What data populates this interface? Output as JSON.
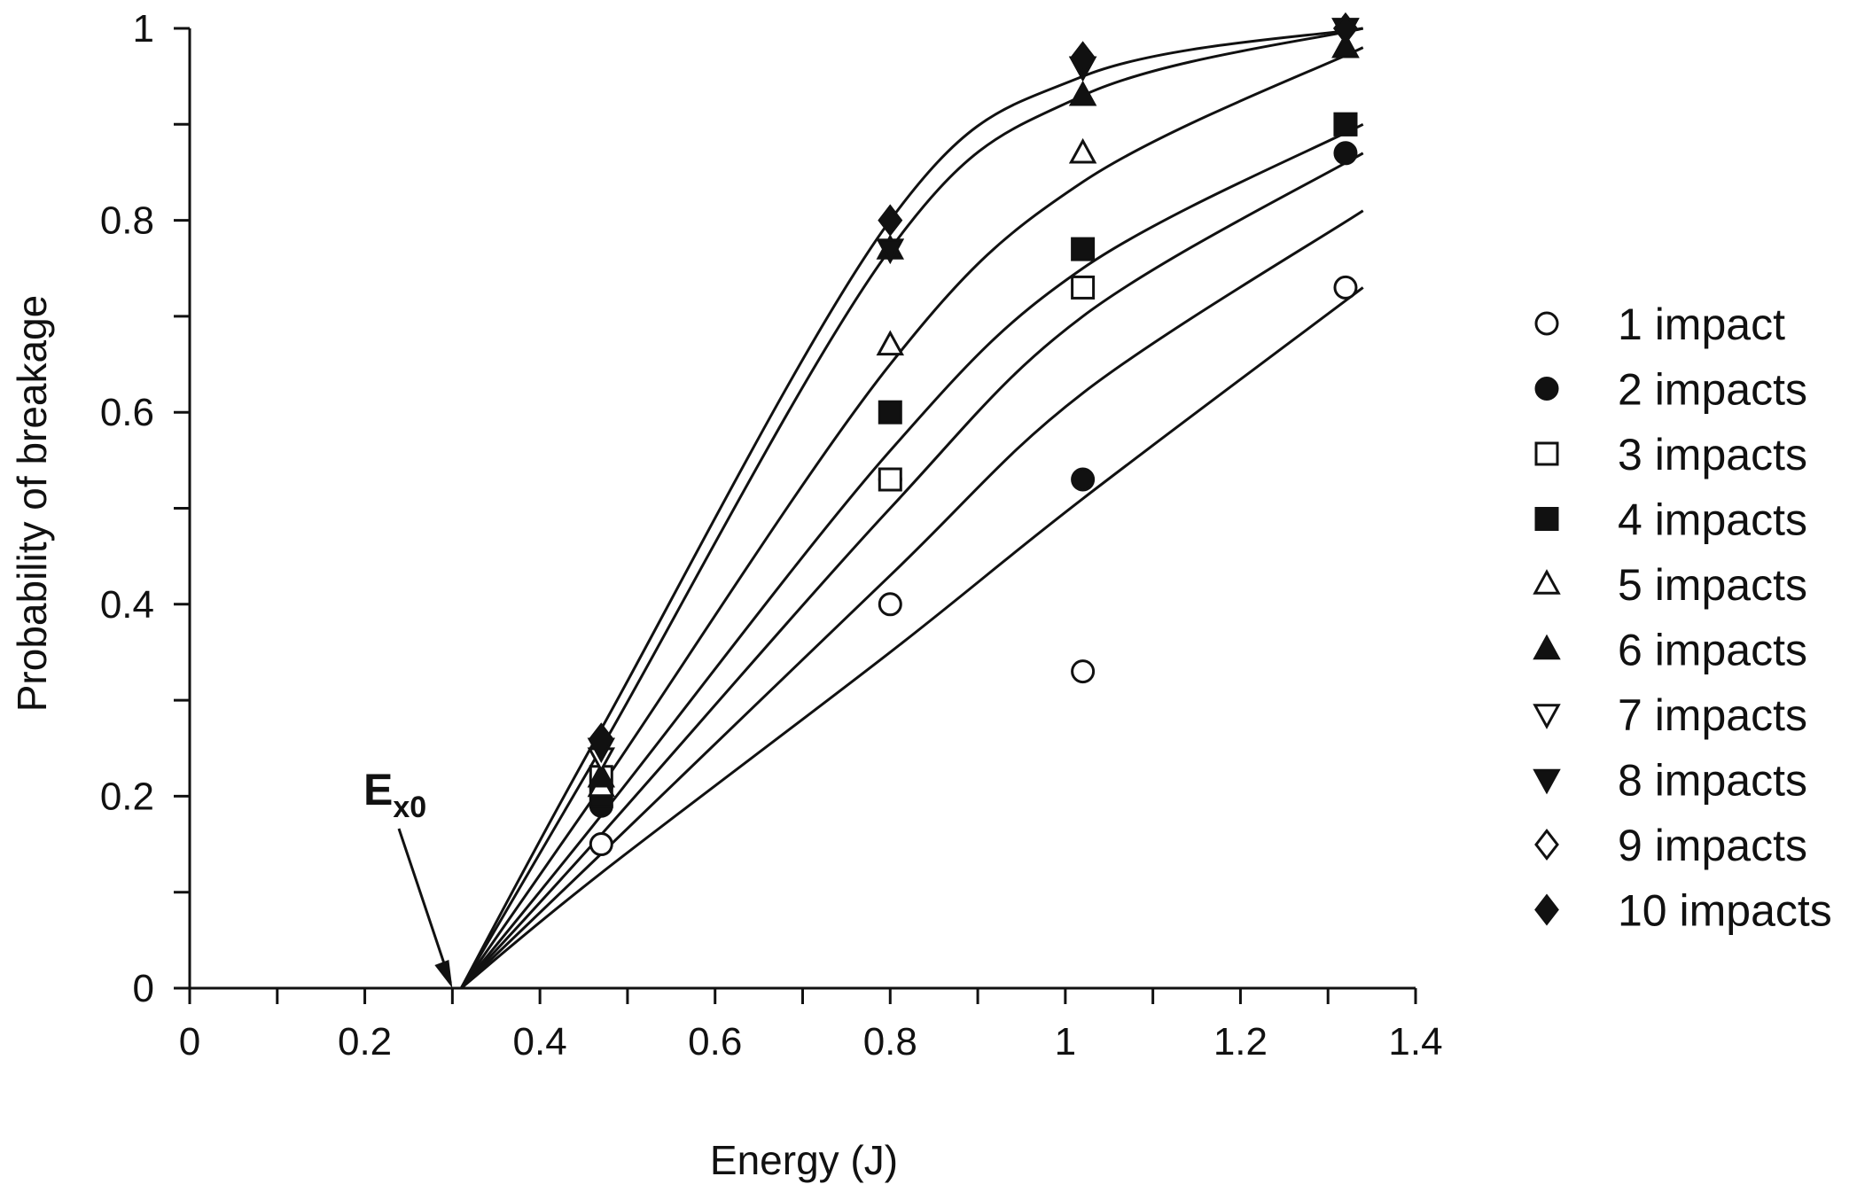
{
  "chart_data": {
    "type": "scatter",
    "title": "",
    "xlabel": "Energy (J)",
    "ylabel": "Probability of breakage",
    "xlim": [
      0,
      1.4
    ],
    "ylim": [
      0,
      1
    ],
    "x_ticks": [
      "0",
      "0.2",
      "0.4",
      "0.6",
      "0.8",
      "1",
      "1.2",
      "1.4"
    ],
    "y_ticks": [
      "0",
      "0.2",
      "0.4",
      "0.6",
      "0.8",
      "1"
    ],
    "grid": false,
    "legend_position": "right",
    "annotation": {
      "main": "E",
      "sub": "x0",
      "points_to": [
        0.3,
        0
      ]
    },
    "x": [
      0.47,
      0.8,
      1.02,
      1.32
    ],
    "series": [
      {
        "name": "1 impact",
        "marker": "circle-open",
        "values": [
          0.15,
          0.4,
          0.33,
          0.73
        ]
      },
      {
        "name": "2 impacts",
        "marker": "circle-filled",
        "values": [
          0.19,
          0.53,
          0.53,
          0.87
        ]
      },
      {
        "name": "3 impacts",
        "marker": "square-open",
        "values": [
          0.22,
          0.53,
          0.73,
          0.9
        ]
      },
      {
        "name": "4 impacts",
        "marker": "square-filled",
        "values": [
          0.2,
          0.6,
          0.77,
          0.9
        ]
      },
      {
        "name": "5 impacts",
        "marker": "triangle-open",
        "values": [
          0.21,
          0.67,
          0.87,
          0.98
        ]
      },
      {
        "name": "6 impacts",
        "marker": "triangle-filled",
        "values": [
          0.22,
          0.77,
          0.93,
          0.98
        ]
      },
      {
        "name": "7 impacts",
        "marker": "tri-down-open",
        "values": [
          0.24,
          0.77,
          0.96,
          1.0
        ]
      },
      {
        "name": "8 impacts",
        "marker": "tri-down-filled",
        "values": [
          0.25,
          0.77,
          0.96,
          1.0
        ]
      },
      {
        "name": "9 impacts",
        "marker": "diamond-open",
        "values": [
          0.26,
          0.8,
          0.97,
          1.0
        ]
      },
      {
        "name": "10 impacts",
        "marker": "diamond-filled",
        "values": [
          0.26,
          0.8,
          0.97,
          1.0
        ]
      }
    ],
    "fit_curves": [
      {
        "x": [
          0.31,
          0.47,
          0.8,
          1.02,
          1.34
        ],
        "y": [
          0,
          0.12,
          0.35,
          0.51,
          0.73
        ]
      },
      {
        "x": [
          0.31,
          0.47,
          0.8,
          1.02,
          1.34
        ],
        "y": [
          0,
          0.14,
          0.43,
          0.62,
          0.81
        ]
      },
      {
        "x": [
          0.31,
          0.47,
          0.8,
          1.02,
          1.34
        ],
        "y": [
          0,
          0.16,
          0.5,
          0.7,
          0.87
        ]
      },
      {
        "x": [
          0.31,
          0.47,
          0.8,
          1.02,
          1.34
        ],
        "y": [
          0,
          0.18,
          0.56,
          0.75,
          0.9
        ]
      },
      {
        "x": [
          0.31,
          0.47,
          0.8,
          1.02,
          1.34
        ],
        "y": [
          0,
          0.21,
          0.65,
          0.84,
          0.98
        ]
      },
      {
        "x": [
          0.31,
          0.47,
          0.8,
          1.02,
          1.34
        ],
        "y": [
          0,
          0.25,
          0.77,
          0.93,
          1.0
        ]
      },
      {
        "x": [
          0.31,
          0.47,
          0.8,
          1.02,
          1.34
        ],
        "y": [
          0,
          0.27,
          0.8,
          0.95,
          1.0
        ]
      }
    ]
  }
}
